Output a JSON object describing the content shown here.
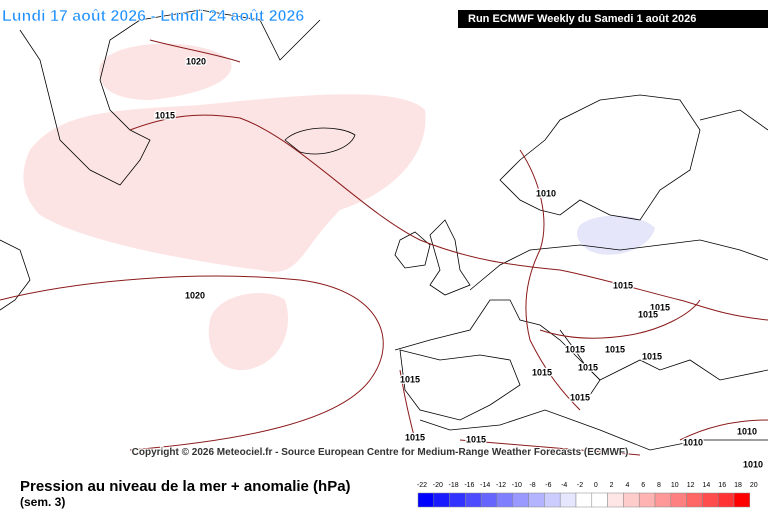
{
  "header": {
    "title": "Lundi 17 août 2026 - Lundi 24 août 2026",
    "run": "Run ECMWF Weekly du Samedi 1 août 2026"
  },
  "map": {
    "isobar_labels": [
      "1020",
      "1015",
      "1010",
      "1020",
      "1015",
      "1015",
      "1015",
      "1015",
      "1015",
      "1015",
      "1015",
      "1015",
      "1015",
      "1015",
      "1015",
      "1015",
      "1010",
      "1010",
      "1010"
    ],
    "copyright": "Copyright © 2026 Meteociel.fr - Source European Centre for Medium-Range Weather Forecasts (ECMWF)"
  },
  "legend": {
    "title": "Pression au niveau de la mer + anomalie (hPa)",
    "subtitle": "(sem. 3)",
    "ticks": [
      "-22",
      "-20",
      "-18",
      "-16",
      "-14",
      "-12",
      "-10",
      "-8",
      "-6",
      "-4",
      "-2",
      "0",
      "2",
      "4",
      "6",
      "8",
      "10",
      "12",
      "14",
      "16",
      "18",
      "20"
    ],
    "colors": [
      "#0000ff",
      "#1a1aff",
      "#3333ff",
      "#4d4dff",
      "#6666ff",
      "#8080ff",
      "#9999ff",
      "#b3b3ff",
      "#ccccff",
      "#e6e6ff",
      "#ffffff",
      "#ffffff",
      "#ffe6e6",
      "#ffcccc",
      "#ffb3b3",
      "#ff9999",
      "#ff8080",
      "#ff6666",
      "#ff4d4d",
      "#ff3333",
      "#ff0000"
    ]
  }
}
